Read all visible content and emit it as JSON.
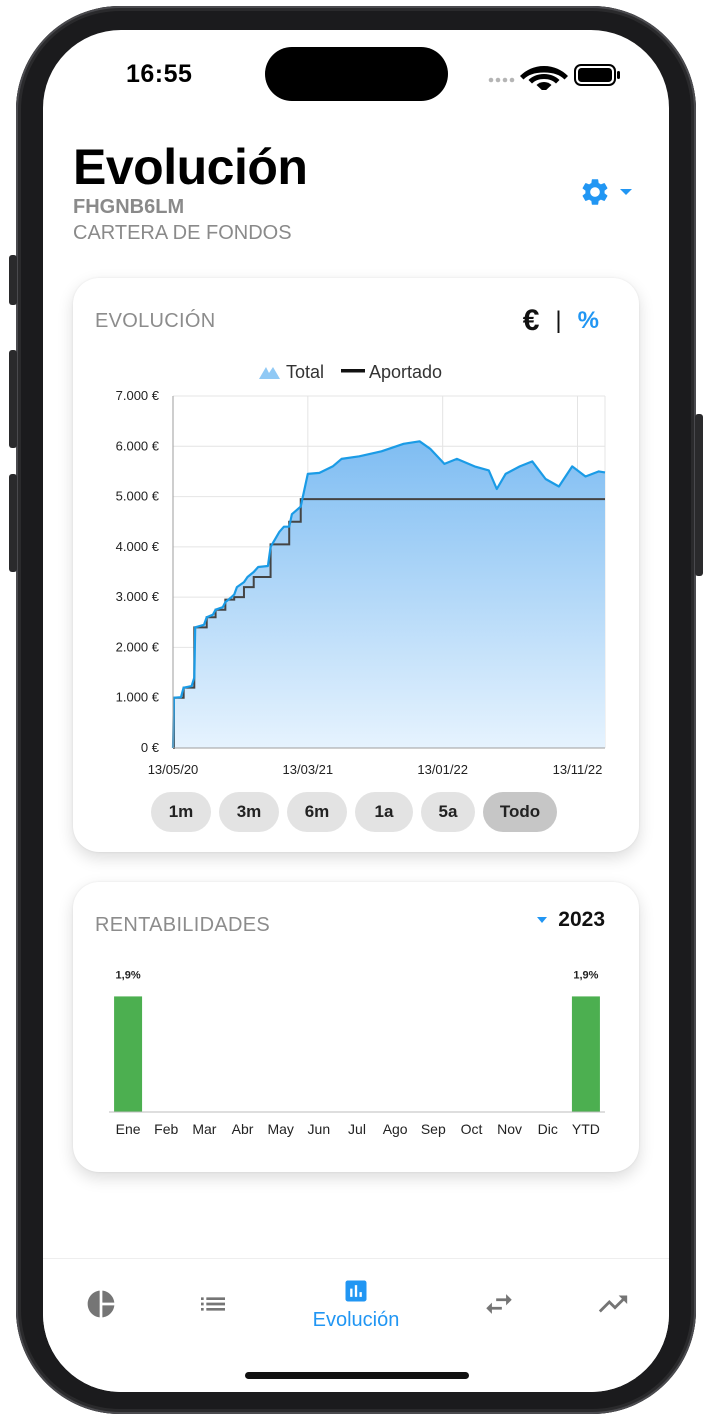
{
  "status_bar": {
    "time": "16:55"
  },
  "header": {
    "title": "Evolución",
    "code": "FHGNB6LM",
    "subtitle": "CARTERA DE FONDOS",
    "settings_icon": "gear-icon",
    "accent_color": "#2196f3"
  },
  "evolution_card": {
    "title": "EVOLUCIÓN",
    "unit_euro": "€",
    "unit_separator": "|",
    "unit_percent": "%",
    "ranges": [
      {
        "label": "1m",
        "active": false
      },
      {
        "label": "3m",
        "active": false
      },
      {
        "label": "6m",
        "active": false
      },
      {
        "label": "1a",
        "active": false
      },
      {
        "label": "5a",
        "active": false
      },
      {
        "label": "Todo",
        "active": true
      }
    ]
  },
  "chart_data": [
    {
      "type": "area",
      "title": "",
      "legend": [
        "Total",
        "Aportado"
      ],
      "legend_position": "top-center",
      "grid": true,
      "x_tick_labels": [
        "13/05/20",
        "13/03/21",
        "13/01/22",
        "13/11/22"
      ],
      "y_tick_labels": [
        "0 €",
        "1.000 €",
        "2.000 €",
        "3.000 €",
        "4.000 €",
        "5.000 €",
        "6.000 €",
        "7.000 €"
      ],
      "ylim": [
        0,
        7000
      ],
      "x_range_days": [
        0,
        974
      ],
      "series": [
        {
          "name": "Total",
          "style": "area",
          "color": "#1a9be6",
          "points": [
            [
              0,
              0
            ],
            [
              2,
              1000
            ],
            [
              18,
              1010
            ],
            [
              24,
              1200
            ],
            [
              42,
              1230
            ],
            [
              48,
              1400
            ],
            [
              50,
              2400
            ],
            [
              70,
              2450
            ],
            [
              76,
              2600
            ],
            [
              90,
              2650
            ],
            [
              96,
              2750
            ],
            [
              112,
              2800
            ],
            [
              118,
              2900
            ],
            [
              132,
              3000
            ],
            [
              138,
              3050
            ],
            [
              144,
              3200
            ],
            [
              160,
              3300
            ],
            [
              168,
              3400
            ],
            [
              182,
              3500
            ],
            [
              192,
              3600
            ],
            [
              214,
              3620
            ],
            [
              220,
              4000
            ],
            [
              240,
              4300
            ],
            [
              250,
              4400
            ],
            [
              262,
              4400
            ],
            [
              268,
              4650
            ],
            [
              288,
              4800
            ],
            [
              304,
              5450
            ],
            [
              330,
              5470
            ],
            [
              360,
              5600
            ],
            [
              380,
              5750
            ],
            [
              420,
              5800
            ],
            [
              470,
              5900
            ],
            [
              520,
              6050
            ],
            [
              556,
              6100
            ],
            [
              580,
              5950
            ],
            [
              612,
              5650
            ],
            [
              640,
              5750
            ],
            [
              680,
              5600
            ],
            [
              712,
              5520
            ],
            [
              730,
              5150
            ],
            [
              750,
              5450
            ],
            [
              782,
              5600
            ],
            [
              810,
              5700
            ],
            [
              840,
              5350
            ],
            [
              870,
              5200
            ],
            [
              900,
              5600
            ],
            [
              930,
              5400
            ],
            [
              960,
              5500
            ],
            [
              974,
              5480
            ]
          ]
        },
        {
          "name": "Aportado",
          "style": "step",
          "color": "#444444",
          "steps": [
            [
              0,
              0
            ],
            [
              2,
              1000
            ],
            [
              24,
              1200
            ],
            [
              48,
              2400
            ],
            [
              76,
              2600
            ],
            [
              96,
              2750
            ],
            [
              118,
              2950
            ],
            [
              138,
              3000
            ],
            [
              160,
              3200
            ],
            [
              182,
              3400
            ],
            [
              220,
              4050
            ],
            [
              262,
              4500
            ],
            [
              288,
              4950
            ],
            [
              974,
              4950
            ]
          ]
        }
      ]
    },
    {
      "type": "bar",
      "title": "RENTABILIDADES",
      "categories": [
        "Ene",
        "Feb",
        "Mar",
        "Abr",
        "May",
        "Jun",
        "Jul",
        "Ago",
        "Sep",
        "Oct",
        "Nov",
        "Dic",
        "YTD"
      ],
      "values": [
        1.9,
        null,
        null,
        null,
        null,
        null,
        null,
        null,
        null,
        null,
        null,
        null,
        1.9
      ],
      "value_labels": [
        "1,9%",
        "",
        "",
        "",
        "",
        "",
        "",
        "",
        "",
        "",
        "",
        "",
        "1,9%"
      ],
      "bar_color": "#4caf50",
      "ylim": [
        0,
        2.4
      ]
    }
  ],
  "returns_card": {
    "title": "RENTABILIDADES",
    "year": "2023"
  },
  "tabbar": {
    "tabs": [
      {
        "icon": "pie-chart-icon",
        "label": "",
        "active": false
      },
      {
        "icon": "list-icon",
        "label": "",
        "active": false
      },
      {
        "icon": "bar-chart-icon",
        "label": "Evolución",
        "active": true
      },
      {
        "icon": "transfer-icon",
        "label": "",
        "active": false
      },
      {
        "icon": "trending-up-icon",
        "label": "",
        "active": false
      }
    ],
    "inactive_color": "#757575",
    "active_color": "#2196f3"
  }
}
